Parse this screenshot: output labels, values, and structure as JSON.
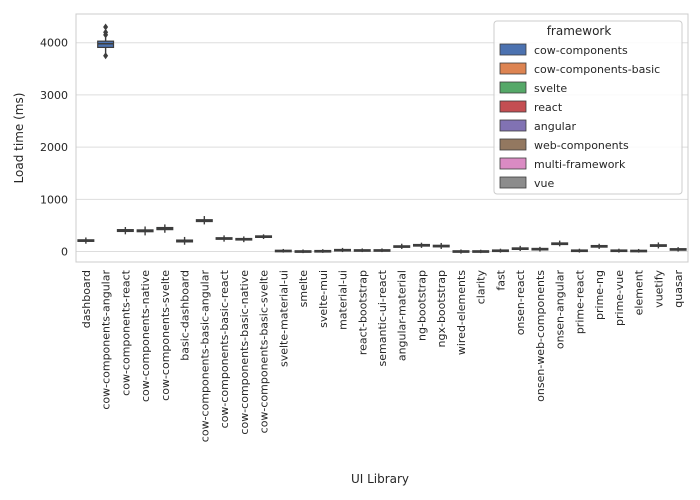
{
  "chart_data": {
    "type": "box",
    "xlabel": "UI Library",
    "ylabel": "Load time (ms)",
    "ylim": [
      -200,
      4550
    ],
    "y_ticks": [
      0,
      1000,
      2000,
      3000,
      4000
    ],
    "grid": true,
    "legend": {
      "title": "framework",
      "placement": "top-right",
      "entries": [
        {
          "name": "cow-components",
          "color": "#4c72b0"
        },
        {
          "name": "cow-components-basic",
          "color": "#dd8452"
        },
        {
          "name": "svelte",
          "color": "#55a868"
        },
        {
          "name": "react",
          "color": "#c44e52"
        },
        {
          "name": "angular",
          "color": "#8172b3"
        },
        {
          "name": "web-components",
          "color": "#937860"
        },
        {
          "name": "multi-framework",
          "color": "#da8bc3"
        },
        {
          "name": "vue",
          "color": "#8c8c8c"
        }
      ]
    },
    "categories": [
      "dashboard",
      "cow-components-angular",
      "cow-components-react",
      "cow-components-native",
      "cow-components-svelte",
      "basic-dashboard",
      "cow-components-basic-angular",
      "cow-components-basic-react",
      "cow-components-basic-native",
      "cow-components-basic-svelte",
      "svelte-material-ui",
      "smelte",
      "svelte-mui",
      "material-ui",
      "react-bootstrap",
      "semantic-ui-react",
      "angular-material",
      "ng-bootstrap",
      "ngx-bootstrap",
      "wired-elements",
      "clarity",
      "fast",
      "onsen-react",
      "onsen-web-components",
      "onsen-angular",
      "prime-react",
      "prime-ng",
      "prime-vue",
      "element",
      "vuetify",
      "quasar"
    ],
    "series": [
      {
        "name": "cow-components",
        "boxes": [
          {
            "category": "dashboard",
            "min": 150,
            "q1": 195,
            "median": 210,
            "q3": 225,
            "max": 270
          },
          {
            "category": "cow-components-angular",
            "min": 3780,
            "q1": 3910,
            "median": 3980,
            "q3": 4030,
            "max": 4100,
            "outliers": [
              3750,
              4150,
              4200,
              4300
            ]
          },
          {
            "category": "cow-components-react",
            "min": 330,
            "q1": 385,
            "median": 400,
            "q3": 420,
            "max": 470
          },
          {
            "category": "cow-components-native",
            "min": 310,
            "q1": 380,
            "median": 395,
            "q3": 415,
            "max": 480
          },
          {
            "category": "cow-components-svelte",
            "min": 360,
            "q1": 420,
            "median": 440,
            "q3": 460,
            "max": 520
          }
        ]
      },
      {
        "name": "cow-components-basic",
        "boxes": [
          {
            "category": "basic-dashboard",
            "min": 130,
            "q1": 185,
            "median": 200,
            "q3": 220,
            "max": 280
          },
          {
            "category": "cow-components-basic-angular",
            "min": 520,
            "q1": 575,
            "median": 590,
            "q3": 610,
            "max": 680
          },
          {
            "category": "cow-components-basic-react",
            "min": 190,
            "q1": 235,
            "median": 250,
            "q3": 265,
            "max": 310
          },
          {
            "category": "cow-components-basic-native",
            "min": 180,
            "q1": 225,
            "median": 235,
            "q3": 250,
            "max": 290
          },
          {
            "category": "cow-components-basic-svelte",
            "min": 240,
            "q1": 275,
            "median": 285,
            "q3": 300,
            "max": 330
          }
        ]
      },
      {
        "name": "svelte",
        "boxes": [
          {
            "category": "svelte-material-ui",
            "min": -20,
            "q1": 5,
            "median": 15,
            "q3": 25,
            "max": 50
          },
          {
            "category": "smelte",
            "min": -30,
            "q1": -5,
            "median": 5,
            "q3": 15,
            "max": 40
          },
          {
            "category": "svelte-mui",
            "min": -25,
            "q1": 0,
            "median": 10,
            "q3": 20,
            "max": 45
          }
        ]
      },
      {
        "name": "react",
        "boxes": [
          {
            "category": "material-ui",
            "min": -10,
            "q1": 20,
            "median": 30,
            "q3": 40,
            "max": 70
          },
          {
            "category": "react-bootstrap",
            "min": -10,
            "q1": 15,
            "median": 25,
            "q3": 35,
            "max": 60
          },
          {
            "category": "semantic-ui-react",
            "min": -10,
            "q1": 15,
            "median": 25,
            "q3": 35,
            "max": 60
          }
        ]
      },
      {
        "name": "angular",
        "boxes": [
          {
            "category": "angular-material",
            "min": 50,
            "q1": 85,
            "median": 100,
            "q3": 110,
            "max": 150
          },
          {
            "category": "ng-bootstrap",
            "min": 70,
            "q1": 105,
            "median": 120,
            "q3": 135,
            "max": 170
          },
          {
            "category": "ngx-bootstrap",
            "min": 50,
            "q1": 90,
            "median": 105,
            "q3": 120,
            "max": 165
          }
        ]
      },
      {
        "name": "web-components",
        "boxes": [
          {
            "category": "wired-elements",
            "min": -40,
            "q1": -5,
            "median": 5,
            "q3": 15,
            "max": 40
          },
          {
            "category": "clarity",
            "min": -30,
            "q1": -5,
            "median": 5,
            "q3": 15,
            "max": 35
          },
          {
            "category": "fast",
            "min": -20,
            "q1": 10,
            "median": 20,
            "q3": 30,
            "max": 55
          }
        ]
      },
      {
        "name": "multi-framework",
        "boxes": [
          {
            "category": "onsen-react",
            "min": 10,
            "q1": 45,
            "median": 55,
            "q3": 70,
            "max": 110
          },
          {
            "category": "onsen-web-components",
            "min": 0,
            "q1": 35,
            "median": 45,
            "q3": 60,
            "max": 90
          },
          {
            "category": "onsen-angular",
            "min": 100,
            "q1": 135,
            "median": 150,
            "q3": 165,
            "max": 210
          },
          {
            "category": "prime-react",
            "min": -20,
            "q1": 10,
            "median": 20,
            "q3": 30,
            "max": 55
          },
          {
            "category": "prime-ng",
            "min": 50,
            "q1": 85,
            "median": 100,
            "q3": 115,
            "max": 150
          },
          {
            "category": "prime-vue",
            "min": -20,
            "q1": 10,
            "median": 20,
            "q3": 30,
            "max": 55
          }
        ]
      },
      {
        "name": "vue",
        "boxes": [
          {
            "category": "element",
            "min": -20,
            "q1": 5,
            "median": 15,
            "q3": 25,
            "max": 50
          },
          {
            "category": "vuetify",
            "min": 60,
            "q1": 100,
            "median": 115,
            "q3": 130,
            "max": 175
          },
          {
            "category": "quasar",
            "min": 0,
            "q1": 30,
            "median": 40,
            "q3": 55,
            "max": 85
          }
        ]
      }
    ]
  }
}
